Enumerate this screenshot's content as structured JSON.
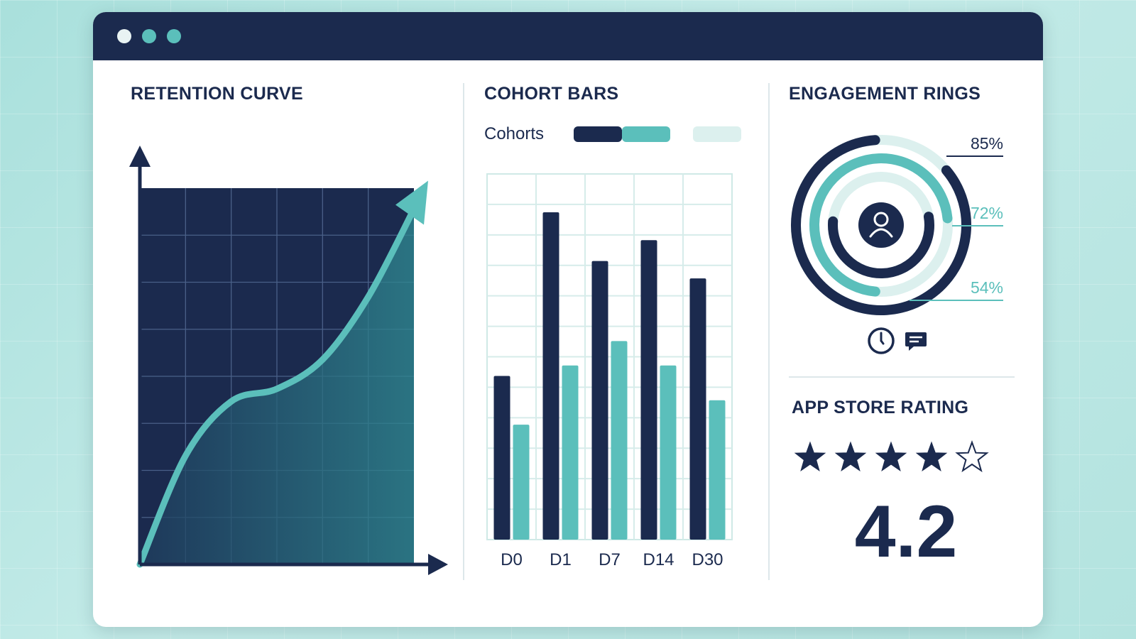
{
  "window": {
    "controls": [
      "close",
      "minimize",
      "maximize"
    ]
  },
  "panels": {
    "retention": {
      "title": "RETENTION CURVE"
    },
    "cohort": {
      "title": "COHORT BARS",
      "legend_label": "Cohorts"
    },
    "engagement": {
      "title": "ENGAGEMENT RINGS",
      "rings": [
        "85%",
        "72%",
        "54%"
      ]
    },
    "rating": {
      "title": "APP STORE RATING",
      "value": "4.2",
      "stars": 4,
      "max_stars": 5
    }
  },
  "icons": [
    "user-icon",
    "clock-icon",
    "chat-icon",
    "star-icon"
  ],
  "colors": {
    "navy": "#1b2a4e",
    "teal": "#5bbfbb",
    "pale_teal": "#dcf0ee"
  },
  "chart_data": [
    {
      "type": "area",
      "title": "RETENTION CURVE",
      "x": [
        0,
        1,
        2,
        3,
        4,
        5,
        6
      ],
      "y": [
        0,
        2.6,
        3.9,
        4.2,
        4.9,
        6.4,
        8.5
      ],
      "xlim": [
        0,
        6
      ],
      "ylim": [
        0,
        9
      ],
      "grid": true
    },
    {
      "type": "bar",
      "title": "COHORT BARS",
      "categories": [
        "D0",
        "D1",
        "D7",
        "D14",
        "D30"
      ],
      "series": [
        {
          "values": [
            47,
            94,
            80,
            86,
            75
          ]
        },
        {
          "values": [
            33,
            50,
            57,
            50,
            40
          ]
        }
      ],
      "ylim": [
        0,
        105
      ],
      "grid": true
    },
    {
      "type": "pie",
      "title": "ENGAGEMENT RINGS",
      "categories": [
        "85%",
        "72%",
        "54%"
      ],
      "values": [
        85,
        72,
        54
      ]
    }
  ]
}
